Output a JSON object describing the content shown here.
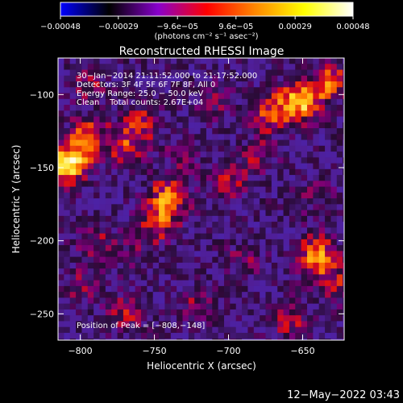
{
  "chart_data": {
    "type": "heatmap",
    "title": "Reconstructed RHESSI Image",
    "xlabel": "Heliocentric X (arcsec)",
    "ylabel": "Heliocentric Y (arcsec)",
    "xlim": [
      -815,
      -622
    ],
    "ylim": [
      -268,
      -75
    ],
    "x_ticks": [
      -800,
      -750,
      -700,
      -650
    ],
    "y_ticks": [
      -100,
      -150,
      -200,
      -250
    ],
    "x_tick_labels": [
      "−800",
      "−750",
      "−700",
      "−650"
    ],
    "y_tick_labels": [
      "−100",
      "−150",
      "−200",
      "−250"
    ],
    "colorbar": {
      "min": -0.00048,
      "max": 0.00048,
      "tick_values": [
        -0.00048,
        -0.00029,
        -9.6e-05,
        9.6e-05,
        0.00029,
        0.00048
      ],
      "tick_labels": [
        "−0.00048",
        "−0.00029",
        "−9.6e−05",
        "9.6e−05",
        "0.00029",
        "0.00048"
      ],
      "units_label": "(photons cm⁻² s⁻¹ asec⁻²)",
      "colors": [
        "#0000ff",
        "#000000",
        "#8800cc",
        "#ff0000",
        "#ff8800",
        "#ffff00",
        "#ffffff"
      ]
    },
    "annotations": [
      "30−Jan−2014 21:11:52.000 to 21:17:52.000",
      "Detectors: 3F 4F 5F 6F 7F 8F, All 0",
      "Energy Range: 25.0 − 50.0 keV",
      "Clean    Total counts: 2.67E+04"
    ],
    "peak_label": "Position of Peak = [−808,−148]",
    "peak": [
      -808,
      -148
    ],
    "sources": [
      {
        "x": -808,
        "y": -148,
        "value": 0.00048
      },
      {
        "x": -795,
        "y": -130,
        "value": 0.0003
      },
      {
        "x": -770,
        "y": -135,
        "value": 0.00022
      },
      {
        "x": -652,
        "y": -105,
        "value": 0.00042
      },
      {
        "x": -632,
        "y": -92,
        "value": 0.0003
      },
      {
        "x": -672,
        "y": -112,
        "value": 0.00025
      },
      {
        "x": -740,
        "y": -170,
        "value": 0.00034
      },
      {
        "x": -748,
        "y": -188,
        "value": 0.00024
      },
      {
        "x": -640,
        "y": -210,
        "value": 0.00036
      },
      {
        "x": -630,
        "y": -230,
        "value": 0.0002
      },
      {
        "x": -700,
        "y": -160,
        "value": 0.00018
      },
      {
        "x": -760,
        "y": -120,
        "value": 0.0002
      },
      {
        "x": -680,
        "y": -140,
        "value": 0.00015
      },
      {
        "x": -710,
        "y": -105,
        "value": 0.00012
      },
      {
        "x": -790,
        "y": -200,
        "value": 0.00014
      },
      {
        "x": -800,
        "y": -230,
        "value": 0.00012
      },
      {
        "x": -770,
        "y": -250,
        "value": 0.00016
      },
      {
        "x": -720,
        "y": -245,
        "value": 0.00014
      },
      {
        "x": -660,
        "y": -255,
        "value": 0.00018
      },
      {
        "x": -640,
        "y": -170,
        "value": 0.00012
      },
      {
        "x": -765,
        "y": -210,
        "value": 0.00011
      },
      {
        "x": -690,
        "y": -215,
        "value": 0.00012
      },
      {
        "x": -730,
        "y": -140,
        "value": 0.00012
      },
      {
        "x": -795,
        "y": -95,
        "value": 0.00015
      }
    ]
  },
  "footer": {
    "timestamp": "12−May−2022 03:43"
  }
}
